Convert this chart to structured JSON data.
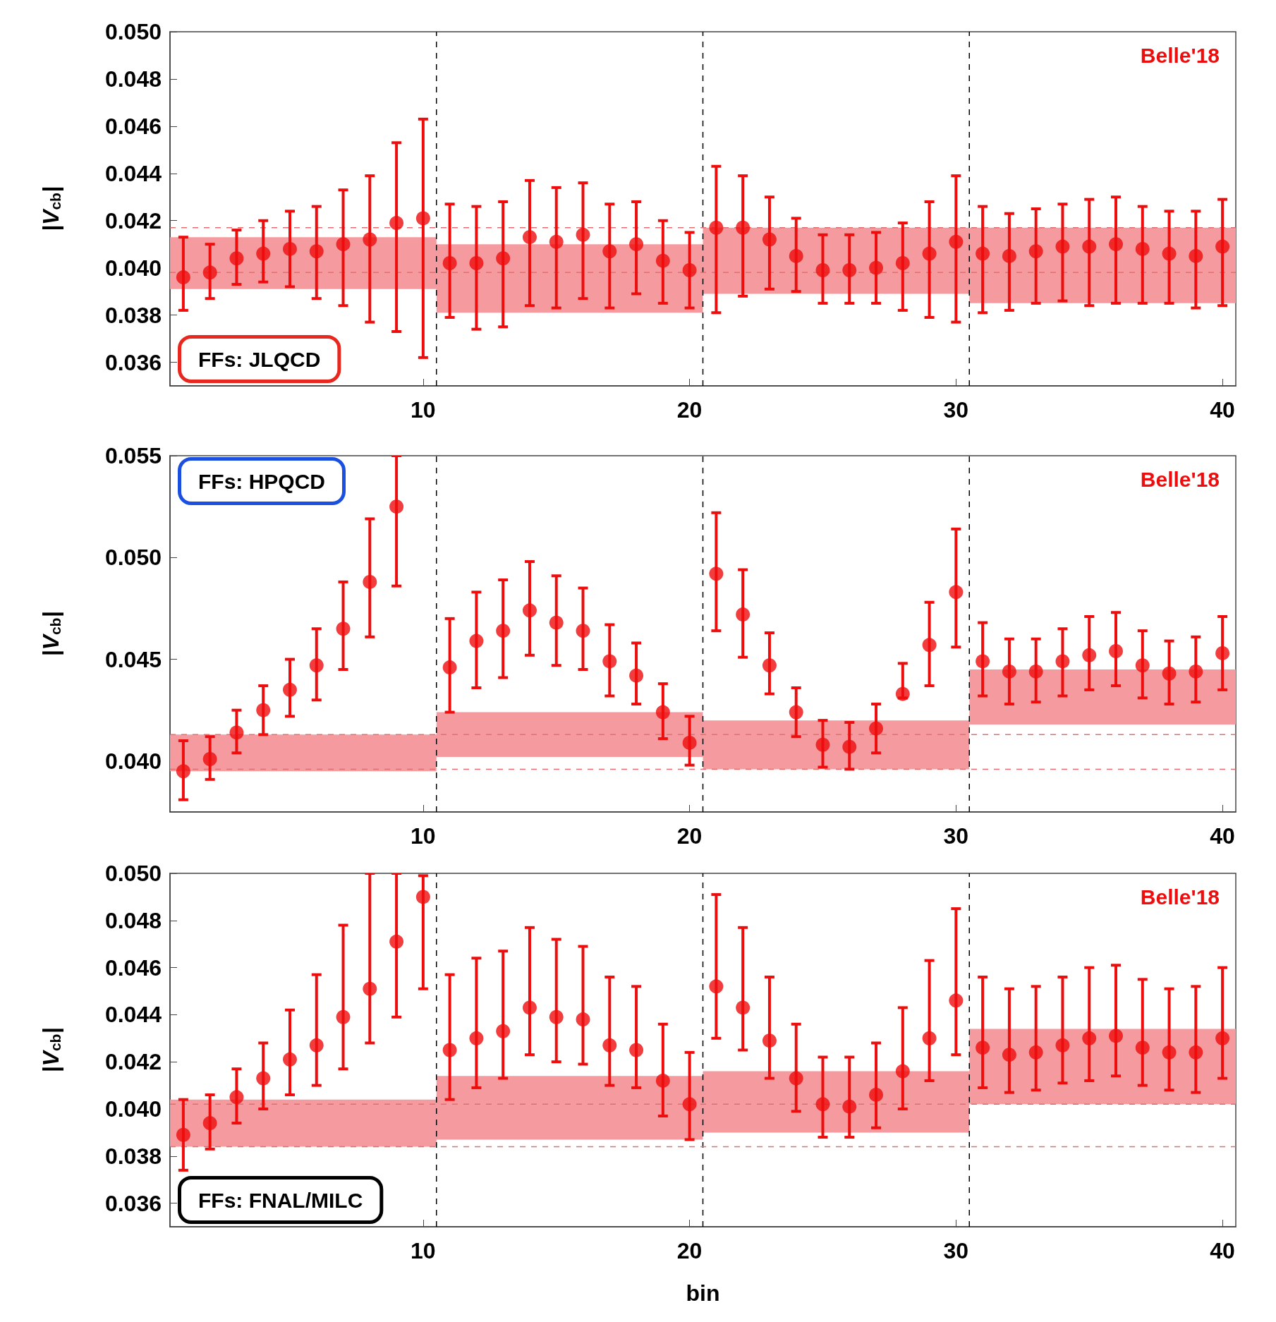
{
  "chart_data": [
    {
      "type": "scatter",
      "ylabel": "|V$_{cb}$|",
      "annotations": [
        "FFs: JLQCD"
      ],
      "marker": "circle",
      "x": [
        1,
        2,
        3,
        4,
        5,
        6,
        7,
        8,
        9,
        10,
        11,
        12,
        13,
        14,
        15,
        16,
        17,
        18,
        19,
        20,
        21,
        22,
        23,
        24,
        25,
        26,
        27,
        28,
        29,
        30,
        31,
        32,
        33,
        34,
        35,
        36,
        37,
        38,
        39,
        40
      ],
      "xlim": [
        0.5,
        40.5
      ],
      "xticks": [
        10,
        20,
        30,
        40
      ],
      "ylim": [
        0.035,
        0.05
      ],
      "yticks": [
        {
          "value": 0.036,
          "label": "0.036"
        },
        {
          "value": 0.038,
          "label": "0.038"
        },
        {
          "value": 0.04,
          "label": "0.040"
        },
        {
          "value": 0.042,
          "label": "0.042"
        },
        {
          "value": 0.044,
          "label": "0.044"
        },
        {
          "value": 0.046,
          "label": "0.046"
        },
        {
          "value": 0.048,
          "label": "0.048"
        },
        {
          "value": 0.05,
          "label": "0.050"
        }
      ],
      "ref_lines": [
        {
          "axis": "x",
          "value": 10.5,
          "color": "#000000",
          "line_style": "dashed"
        },
        {
          "axis": "x",
          "value": 20.5,
          "color": "#000000",
          "line_style": "dashed"
        },
        {
          "axis": "x",
          "value": 30.5,
          "color": "#000000",
          "line_style": "dashed"
        },
        {
          "axis": "y",
          "value": 0.0417,
          "color": "#e07070",
          "line_style": "dashed"
        },
        {
          "axis": "y",
          "value": 0.0398,
          "color": "#e07070",
          "line_style": "dashed"
        }
      ],
      "series": [
        {
          "type": "area",
          "color": "#f59a9e",
          "x": [
            0.5,
            10.5,
            10.5,
            20.5,
            20.5,
            30.5,
            30.5,
            40.5
          ],
          "values": [
            null,
            null,
            null,
            null,
            null,
            null,
            null,
            null
          ],
          "lower": [
            0.0391,
            0.0391,
            0.0381,
            0.0381,
            0.0389,
            0.0389,
            0.0385,
            0.0385
          ],
          "upper": [
            0.0413,
            0.0413,
            0.041,
            0.041,
            0.0417,
            0.0417,
            0.0417,
            0.0417
          ]
        },
        {
          "name": "Belle'18",
          "color": "#ee0d0d",
          "values": [
            0.0396,
            0.0398,
            0.0404,
            0.0406,
            0.0408,
            0.0407,
            0.041,
            0.0412,
            0.0419,
            0.0421,
            0.0402,
            0.0402,
            0.0404,
            0.0413,
            0.0411,
            0.0414,
            0.0407,
            0.041,
            0.0403,
            0.0399,
            0.0417,
            0.0417,
            0.0412,
            0.0405,
            0.0399,
            0.0399,
            0.04,
            0.0402,
            0.0406,
            0.0411,
            0.0406,
            0.0405,
            0.0407,
            0.0409,
            0.0409,
            0.041,
            0.0408,
            0.0406,
            0.0405,
            0.0409
          ],
          "errors": [
            [
              0.0382,
              0.0413
            ],
            [
              0.0387,
              0.041
            ],
            [
              0.0393,
              0.0416
            ],
            [
              0.0394,
              0.042
            ],
            [
              0.0392,
              0.0424
            ],
            [
              0.0387,
              0.0426
            ],
            [
              0.0384,
              0.0433
            ],
            [
              0.0377,
              0.0439
            ],
            [
              0.0373,
              0.0453
            ],
            [
              0.0362,
              0.0463
            ],
            [
              0.0379,
              0.0427
            ],
            [
              0.0374,
              0.0426
            ],
            [
              0.0375,
              0.0428
            ],
            [
              0.0384,
              0.0437
            ],
            [
              0.0383,
              0.0434
            ],
            [
              0.0387,
              0.0436
            ],
            [
              0.0383,
              0.0427
            ],
            [
              0.0389,
              0.0428
            ],
            [
              0.0385,
              0.042
            ],
            [
              0.0383,
              0.0415
            ],
            [
              0.0381,
              0.0443
            ],
            [
              0.0388,
              0.0439
            ],
            [
              0.0391,
              0.043
            ],
            [
              0.039,
              0.0421
            ],
            [
              0.0385,
              0.0414
            ],
            [
              0.0385,
              0.0414
            ],
            [
              0.0385,
              0.0415
            ],
            [
              0.0382,
              0.0419
            ],
            [
              0.0379,
              0.0428
            ],
            [
              0.0377,
              0.0439
            ],
            [
              0.0381,
              0.0426
            ],
            [
              0.0382,
              0.0423
            ],
            [
              0.0385,
              0.0425
            ],
            [
              0.0386,
              0.0427
            ],
            [
              0.0384,
              0.0429
            ],
            [
              0.0385,
              0.043
            ],
            [
              0.0385,
              0.0426
            ],
            [
              0.0385,
              0.0424
            ],
            [
              0.0383,
              0.0424
            ],
            [
              0.0384,
              0.0429
            ]
          ]
        }
      ]
    },
    {
      "type": "scatter",
      "ylabel": "|V$_{cb}$|",
      "annotations": [
        "FFs: HPQCD"
      ],
      "marker": "circle",
      "x": [
        1,
        2,
        3,
        4,
        5,
        6,
        7,
        8,
        9,
        10,
        11,
        12,
        13,
        14,
        15,
        16,
        17,
        18,
        19,
        20,
        21,
        22,
        23,
        24,
        25,
        26,
        27,
        28,
        29,
        30,
        31,
        32,
        33,
        34,
        35,
        36,
        37,
        38,
        39,
        40
      ],
      "xlim": [
        0.5,
        40.5
      ],
      "xticks": [
        10,
        20,
        30,
        40
      ],
      "ylim": [
        0.0375,
        0.055
      ],
      "yticks": [
        {
          "value": 0.04,
          "label": "0.040"
        },
        {
          "value": 0.045,
          "label": "0.045"
        },
        {
          "value": 0.05,
          "label": "0.050"
        },
        {
          "value": 0.055,
          "label": "0.055"
        }
      ],
      "ref_lines": [
        {
          "axis": "x",
          "value": 10.5,
          "color": "#000000",
          "line_style": "dashed"
        },
        {
          "axis": "x",
          "value": 20.5,
          "color": "#000000",
          "line_style": "dashed"
        },
        {
          "axis": "x",
          "value": 30.5,
          "color": "#000000",
          "line_style": "dashed"
        },
        {
          "axis": "y",
          "value": 0.0413,
          "color": "#e07070",
          "line_style": "dashed"
        },
        {
          "axis": "y",
          "value": 0.0396,
          "color": "#e07070",
          "line_style": "dashed"
        }
      ],
      "series": [
        {
          "type": "area",
          "color": "#f59a9e",
          "x": [
            0.5,
            10.5,
            10.5,
            20.5,
            20.5,
            30.5,
            30.5,
            40.5
          ],
          "values": [
            null,
            null,
            null,
            null,
            null,
            null,
            null,
            null
          ],
          "lower": [
            0.0395,
            0.0395,
            0.0402,
            0.0402,
            0.0396,
            0.0396,
            0.0418,
            0.0418
          ],
          "upper": [
            0.0413,
            0.0413,
            0.0424,
            0.0424,
            0.042,
            0.042,
            0.0445,
            0.0445
          ]
        },
        {
          "name": "Belle'18",
          "color": "#ee0d0d",
          "values": [
            0.0395,
            0.0401,
            0.0414,
            0.0425,
            0.0435,
            0.0447,
            0.0465,
            0.0488,
            0.0525,
            null,
            0.0446,
            0.0459,
            0.0464,
            0.0474,
            0.0468,
            0.0464,
            0.0449,
            0.0442,
            0.0424,
            0.0409,
            0.0492,
            0.0472,
            0.0447,
            0.0424,
            0.0408,
            0.0407,
            0.0416,
            0.0433,
            0.0457,
            0.0483,
            0.0449,
            0.0444,
            0.0444,
            0.0449,
            0.0452,
            0.0454,
            0.0447,
            0.0443,
            0.0444,
            0.0453
          ],
          "errors": [
            [
              0.0381,
              0.041
            ],
            [
              0.0391,
              0.0412
            ],
            [
              0.0404,
              0.0425
            ],
            [
              0.0413,
              0.0437
            ],
            [
              0.0422,
              0.045
            ],
            [
              0.043,
              0.0465
            ],
            [
              0.0445,
              0.0488
            ],
            [
              0.0461,
              0.0519
            ],
            [
              0.0486,
              0.055
            ],
            null,
            [
              0.0424,
              0.047
            ],
            [
              0.0436,
              0.0483
            ],
            [
              0.0441,
              0.0489
            ],
            [
              0.0452,
              0.0498
            ],
            [
              0.0447,
              0.0491
            ],
            [
              0.0445,
              0.0485
            ],
            [
              0.0432,
              0.0467
            ],
            [
              0.0428,
              0.0458
            ],
            [
              0.0411,
              0.0438
            ],
            [
              0.0398,
              0.0422
            ],
            [
              0.0464,
              0.0522
            ],
            [
              0.0451,
              0.0494
            ],
            [
              0.0433,
              0.0463
            ],
            [
              0.0412,
              0.0436
            ],
            [
              0.0397,
              0.042
            ],
            [
              0.0396,
              0.0419
            ],
            [
              0.0404,
              0.0428
            ],
            [
              0.0431,
              0.0448
            ],
            [
              0.0437,
              0.0478
            ],
            [
              0.0456,
              0.0514
            ],
            [
              0.0432,
              0.0468
            ],
            [
              0.0428,
              0.046
            ],
            [
              0.0429,
              0.046
            ],
            [
              0.0432,
              0.0465
            ],
            [
              0.0435,
              0.0471
            ],
            [
              0.0437,
              0.0473
            ],
            [
              0.0431,
              0.0464
            ],
            [
              0.0428,
              0.0459
            ],
            [
              0.0429,
              0.0461
            ],
            [
              0.0435,
              0.0471
            ]
          ]
        }
      ]
    },
    {
      "type": "scatter",
      "ylabel": "|V$_{cb}$|",
      "xlabel": "bin",
      "annotations": [
        "FFs: FNAL/MILC"
      ],
      "marker": "circle",
      "x": [
        1,
        2,
        3,
        4,
        5,
        6,
        7,
        8,
        9,
        10,
        11,
        12,
        13,
        14,
        15,
        16,
        17,
        18,
        19,
        20,
        21,
        22,
        23,
        24,
        25,
        26,
        27,
        28,
        29,
        30,
        31,
        32,
        33,
        34,
        35,
        36,
        37,
        38,
        39,
        40
      ],
      "xlim": [
        0.5,
        40.5
      ],
      "xticks": [
        10,
        20,
        30,
        40
      ],
      "ylim": [
        0.035,
        0.05
      ],
      "yticks": [
        {
          "value": 0.036,
          "label": "0.036"
        },
        {
          "value": 0.038,
          "label": "0.038"
        },
        {
          "value": 0.04,
          "label": "0.040"
        },
        {
          "value": 0.042,
          "label": "0.042"
        },
        {
          "value": 0.044,
          "label": "0.044"
        },
        {
          "value": 0.046,
          "label": "0.046"
        },
        {
          "value": 0.048,
          "label": "0.048"
        },
        {
          "value": 0.05,
          "label": "0.050"
        }
      ],
      "ref_lines": [
        {
          "axis": "x",
          "value": 10.5,
          "color": "#000000",
          "line_style": "dashed"
        },
        {
          "axis": "x",
          "value": 20.5,
          "color": "#000000",
          "line_style": "dashed"
        },
        {
          "axis": "x",
          "value": 30.5,
          "color": "#000000",
          "line_style": "dashed"
        },
        {
          "axis": "y",
          "value": 0.0402,
          "color": "#e07070",
          "line_style": "dashed"
        },
        {
          "axis": "y",
          "value": 0.0384,
          "color": "#e07070",
          "line_style": "dashed"
        }
      ],
      "series": [
        {
          "type": "area",
          "color": "#f59a9e",
          "x": [
            0.5,
            10.5,
            10.5,
            20.5,
            20.5,
            30.5,
            30.5,
            40.5
          ],
          "values": [
            null,
            null,
            null,
            null,
            null,
            null,
            null,
            null
          ],
          "lower": [
            0.0384,
            0.0384,
            0.0387,
            0.0387,
            0.039,
            0.039,
            0.0402,
            0.0402
          ],
          "upper": [
            0.0404,
            0.0404,
            0.0414,
            0.0414,
            0.0416,
            0.0416,
            0.0434,
            0.0434
          ]
        },
        {
          "name": "Belle'18",
          "color": "#ee0d0d",
          "values": [
            0.0389,
            0.0394,
            0.0405,
            0.0413,
            0.0421,
            0.0427,
            0.0439,
            0.0451,
            0.0471,
            0.049,
            0.0425,
            0.043,
            0.0433,
            0.0443,
            0.0439,
            0.0438,
            0.0427,
            0.0425,
            0.0412,
            0.0402,
            0.0452,
            0.0443,
            0.0429,
            0.0413,
            0.0402,
            0.0401,
            0.0406,
            0.0416,
            0.043,
            0.0446,
            0.0426,
            0.0423,
            0.0424,
            0.0427,
            0.043,
            0.0431,
            0.0426,
            0.0424,
            0.0424,
            0.043
          ],
          "errors": [
            [
              0.0374,
              0.0404
            ],
            [
              0.0383,
              0.0406
            ],
            [
              0.0394,
              0.0417
            ],
            [
              0.04,
              0.0428
            ],
            [
              0.0406,
              0.0442
            ],
            [
              0.041,
              0.0457
            ],
            [
              0.0417,
              0.0478
            ],
            [
              0.0428,
              0.05
            ],
            [
              0.0439,
              0.05
            ],
            [
              0.0451,
              0.0499
            ],
            [
              0.0404,
              0.0457
            ],
            [
              0.0409,
              0.0464
            ],
            [
              0.0413,
              0.0467
            ],
            [
              0.0423,
              0.0477
            ],
            [
              0.042,
              0.0472
            ],
            [
              0.0419,
              0.0469
            ],
            [
              0.041,
              0.0456
            ],
            [
              0.0409,
              0.0452
            ],
            [
              0.0397,
              0.0436
            ],
            [
              0.0387,
              0.0424
            ],
            [
              0.043,
              0.0491
            ],
            [
              0.0425,
              0.0477
            ],
            [
              0.0413,
              0.0456
            ],
            [
              0.0399,
              0.0436
            ],
            [
              0.0388,
              0.0422
            ],
            [
              0.0388,
              0.0422
            ],
            [
              0.0392,
              0.0428
            ],
            [
              0.04,
              0.0443
            ],
            [
              0.0412,
              0.0463
            ],
            [
              0.0423,
              0.0485
            ],
            [
              0.0409,
              0.0456
            ],
            [
              0.0407,
              0.0451
            ],
            [
              0.0408,
              0.0452
            ],
            [
              0.0411,
              0.0456
            ],
            [
              0.0412,
              0.046
            ],
            [
              0.0414,
              0.0461
            ],
            [
              0.041,
              0.0455
            ],
            [
              0.0408,
              0.0451
            ],
            [
              0.0407,
              0.0452
            ],
            [
              0.0413,
              0.046
            ]
          ]
        }
      ]
    }
  ]
}
